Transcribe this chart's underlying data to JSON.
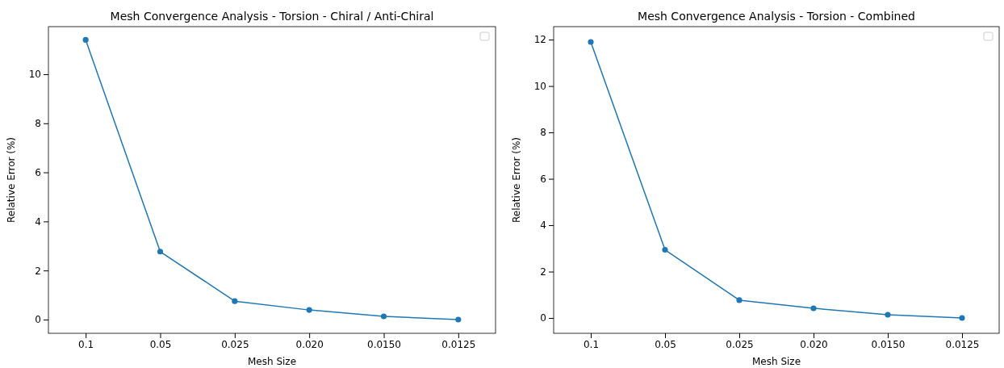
{
  "chart_data": [
    {
      "type": "line",
      "title": "Mesh Convergence Analysis - Torsion - Chiral / Anti-Chiral",
      "xlabel": "Mesh Size",
      "ylabel": "Relative Error (%)",
      "categories": [
        "0.1",
        "0.05",
        "0.025",
        "0.020",
        "0.0150",
        "0.0125"
      ],
      "series": [
        {
          "color": "#1f77b4",
          "values": [
            11.4,
            2.77,
            0.75,
            0.39,
            0.13,
            0.0
          ]
        }
      ],
      "ylim": [
        -0.56,
        11.94
      ],
      "yticks": [
        0,
        2,
        4,
        6,
        8,
        10
      ],
      "marker": "circle",
      "line_style": "solid",
      "grid": false
    },
    {
      "type": "line",
      "title": "Mesh Convergence Analysis - Torsion - Combined",
      "xlabel": "Mesh Size",
      "ylabel": "Relative Error (%)",
      "categories": [
        "0.1",
        "0.05",
        "0.025",
        "0.020",
        "0.0150",
        "0.0125"
      ],
      "series": [
        {
          "color": "#1f77b4",
          "values": [
            11.9,
            2.94,
            0.77,
            0.42,
            0.14,
            0.0
          ]
        }
      ],
      "ylim": [
        -0.66,
        12.56
      ],
      "yticks": [
        0,
        2,
        4,
        6,
        8,
        10,
        12
      ],
      "marker": "circle",
      "line_style": "solid",
      "grid": false
    }
  ]
}
